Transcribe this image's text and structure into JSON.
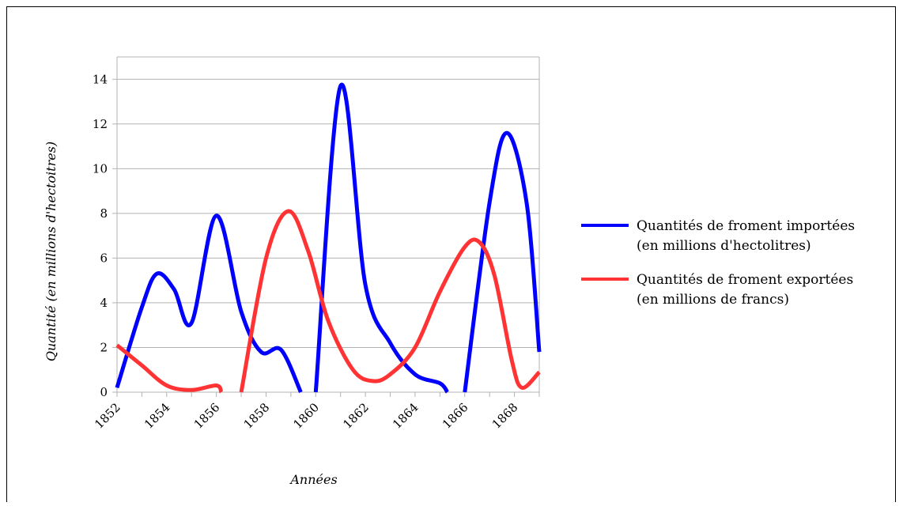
{
  "chart_data": {
    "type": "line",
    "xlabel": "Années",
    "ylabel": "Quantité (en millions d'hectoitres)",
    "xlim": [
      1852,
      1869
    ],
    "ylim": [
      0,
      15
    ],
    "xticks": [
      "1852",
      "1854",
      "1856",
      "1858",
      "1860",
      "1862",
      "1864",
      "1866",
      "1868"
    ],
    "yticks": [
      "0",
      "2",
      "4",
      "6",
      "8",
      "10",
      "12",
      "14"
    ],
    "grid": "horizontal",
    "legend_position": "right",
    "series": [
      {
        "name_line1": "Quantités de froment importées",
        "name_line2": "(en millions d'hectolitres)",
        "color": "#0000ff",
        "segments": [
          [
            [
              1852,
              0.2
            ],
            [
              1853,
              3.8
            ],
            [
              1853.6,
              5.3
            ],
            [
              1854.3,
              4.6
            ],
            [
              1855,
              3.1
            ],
            [
              1856,
              7.9
            ],
            [
              1857,
              3.6
            ],
            [
              1857.8,
              1.8
            ],
            [
              1858.6,
              1.9
            ],
            [
              1859.4,
              0
            ]
          ],
          [
            [
              1860,
              0
            ],
            [
              1861,
              13.7
            ],
            [
              1862,
              4.8
            ],
            [
              1863,
              2.2
            ],
            [
              1864,
              0.8
            ],
            [
              1865,
              0.4
            ],
            [
              1865.3,
              0
            ]
          ],
          [
            [
              1866,
              0
            ],
            [
              1867,
              8.5
            ],
            [
              1867.7,
              11.6
            ],
            [
              1868.5,
              8.4
            ],
            [
              1869,
              1.8
            ]
          ]
        ]
      },
      {
        "name_line1": "Quantités de froment exportées",
        "name_line2": "(en millions de francs)",
        "color": "#ff3333",
        "segments": [
          [
            [
              1852,
              2.1
            ],
            [
              1853,
              1.2
            ],
            [
              1854,
              0.3
            ],
            [
              1855,
              0.1
            ],
            [
              1856,
              0.3
            ],
            [
              1856.2,
              0
            ]
          ],
          [
            [
              1857,
              0
            ],
            [
              1858,
              6.0
            ],
            [
              1858.9,
              8.1
            ],
            [
              1859.7,
              6.3
            ],
            [
              1860.5,
              3.2
            ],
            [
              1861.5,
              1.0
            ],
            [
              1862.3,
              0.5
            ],
            [
              1863,
              0.8
            ],
            [
              1864,
              2.0
            ],
            [
              1865,
              4.5
            ],
            [
              1866,
              6.5
            ],
            [
              1866.6,
              6.7
            ],
            [
              1867.2,
              5.2
            ],
            [
              1867.9,
              1.4
            ],
            [
              1868.3,
              0.2
            ],
            [
              1869,
              0.9
            ]
          ]
        ]
      }
    ]
  }
}
